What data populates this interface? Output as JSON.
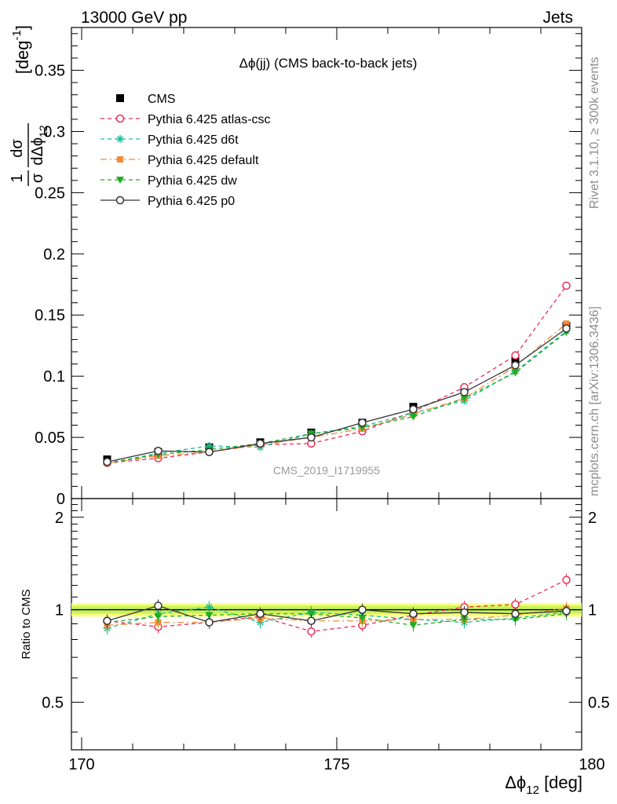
{
  "header": {
    "left": "13000 GeV pp",
    "right": "Jets"
  },
  "side_labels": {
    "rivet": "Rivet 3.1.10, ≥ 300k events",
    "mcplots": "mcplots.cern.ch [arXiv:1306.3436]"
  },
  "watermark": "CMS_2019_I1719955",
  "chart_data": [
    {
      "type": "scatter",
      "panel": "main",
      "title": "Δϕ(jj) (CMS back-to-back jets)",
      "ylabel": "1/σ dσ/dΔϕ_12 [deg^-1]",
      "ylabel_parts": {
        "num": "1",
        "den": "σ",
        "dnum": "dσ",
        "dden": "dΔϕ",
        "sub": "12",
        "unit": "[deg",
        "sup": "-1",
        "close": "]"
      },
      "xlabel": "Δϕ_12 [deg]",
      "xlim": [
        170,
        180
      ],
      "ylim": [
        0,
        0.385
      ],
      "yticks": [
        0,
        0.05,
        0.1,
        0.15,
        0.2,
        0.25,
        0.3,
        0.35
      ],
      "ytick_labels": [
        "0",
        "0.05",
        "0.1",
        "0.15",
        "0.2",
        "0.25",
        "0.3",
        "0.35"
      ],
      "legend_position": "top-left",
      "x": [
        170.5,
        171.5,
        172.5,
        173.5,
        174.5,
        175.5,
        176.5,
        177.5,
        178.5,
        179.5
      ],
      "series": [
        {
          "name": "CMS",
          "color": "#000000",
          "marker": "square",
          "line": "none",
          "values": [
            0.032,
            0.038,
            0.042,
            0.046,
            0.054,
            0.062,
            0.075,
            0.089,
            0.112,
            0.141
          ]
        },
        {
          "name": "Pythia 6.425 atlas-csc",
          "color": "#ee2c55",
          "marker": "open-circle",
          "line": "dashed",
          "values": [
            0.029,
            0.033,
            0.038,
            0.044,
            0.045,
            0.055,
            0.071,
            0.091,
            0.117,
            0.174
          ]
        },
        {
          "name": "Pythia 6.425 d6t",
          "color": "#1abc9c",
          "marker": "asterisk",
          "line": "dashed",
          "values": [
            0.029,
            0.037,
            0.043,
            0.042,
            0.053,
            0.059,
            0.07,
            0.08,
            0.104,
            0.137
          ]
        },
        {
          "name": "Pythia 6.425 default",
          "color": "#f58b3a",
          "marker": "filled-square",
          "line": "dashdot",
          "values": [
            0.029,
            0.035,
            0.038,
            0.044,
            0.05,
            0.057,
            0.069,
            0.082,
            0.108,
            0.143
          ]
        },
        {
          "name": "Pythia 6.425 dw",
          "color": "#1fae1f",
          "marker": "filled-triangle-down",
          "line": "dashed",
          "values": [
            0.029,
            0.036,
            0.04,
            0.045,
            0.053,
            0.058,
            0.067,
            0.082,
            0.103,
            0.136
          ]
        },
        {
          "name": "Pythia 6.425 p0",
          "color": "#333333",
          "marker": "open-circle",
          "line": "solid",
          "values": [
            0.03,
            0.039,
            0.038,
            0.045,
            0.05,
            0.062,
            0.073,
            0.087,
            0.109,
            0.139
          ]
        }
      ]
    },
    {
      "type": "scatter",
      "panel": "ratio",
      "ylabel": "Ratio to CMS",
      "xlabel": "Δϕ_12 [deg]",
      "xlim": [
        170,
        180
      ],
      "ylim": [
        0.35,
        2.3
      ],
      "y_scale": "log",
      "yticks": [
        0.5,
        1,
        2
      ],
      "ytick_labels": [
        "0.5",
        "1",
        "2"
      ],
      "xticks": [
        170,
        175,
        180
      ],
      "xtick_labels": [
        "170",
        "175",
        "180"
      ],
      "band": {
        "inner": [
          0.97,
          1.03
        ],
        "outer": [
          0.95,
          1.05
        ]
      },
      "x": [
        170.5,
        171.5,
        172.5,
        173.5,
        174.5,
        175.5,
        176.5,
        177.5,
        178.5,
        179.5
      ],
      "series": [
        {
          "name": "Pythia 6.425 atlas-csc",
          "color": "#ee2c55",
          "marker": "open-circle",
          "line": "dashed",
          "values": [
            0.92,
            0.88,
            0.91,
            0.95,
            0.85,
            0.89,
            0.96,
            1.02,
            1.04,
            1.25
          ]
        },
        {
          "name": "Pythia 6.425 d6t",
          "color": "#1abc9c",
          "marker": "asterisk",
          "line": "dashed",
          "values": [
            0.87,
            0.97,
            1.02,
            0.91,
            0.98,
            0.96,
            0.93,
            0.91,
            0.94,
            0.98
          ]
        },
        {
          "name": "Pythia 6.425 default",
          "color": "#f58b3a",
          "marker": "filled-square",
          "line": "dashdot",
          "values": [
            0.89,
            0.91,
            0.91,
            0.94,
            0.92,
            0.92,
            0.93,
            0.93,
            0.96,
            1.01
          ]
        },
        {
          "name": "Pythia 6.425 dw",
          "color": "#1fae1f",
          "marker": "filled-triangle-down",
          "line": "dashed",
          "values": [
            0.91,
            0.95,
            0.96,
            0.97,
            0.97,
            0.94,
            0.89,
            0.93,
            0.93,
            0.97
          ]
        },
        {
          "name": "Pythia 6.425 p0",
          "color": "#333333",
          "marker": "open-circle",
          "line": "solid",
          "values": [
            0.92,
            1.03,
            0.91,
            0.97,
            0.92,
            1.0,
            0.97,
            0.98,
            0.97,
            0.99
          ]
        }
      ]
    }
  ]
}
